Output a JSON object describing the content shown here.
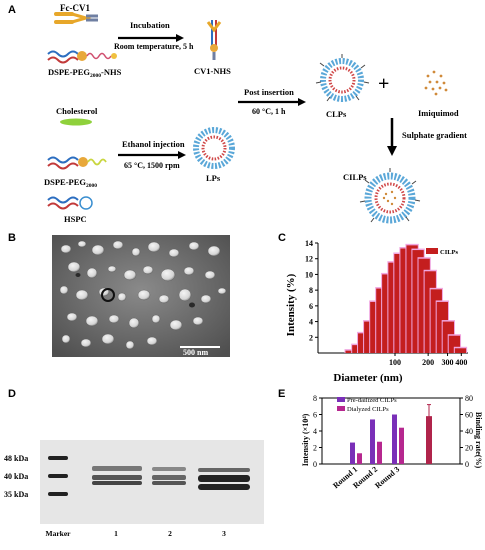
{
  "panels": {
    "a": "A",
    "b": "B",
    "c": "C",
    "d": "D",
    "e": "E"
  },
  "scheme": {
    "fc_cv1": "Fc-CV1",
    "dspe_nhs_pre": "DSPE-PEG",
    "dspe_nhs_sub": "2000",
    "dspe_nhs_post": "-NHS",
    "incubation": "Incubation",
    "incubation_cond": "Room temperature, 5 h",
    "cv1_nhs": "CV1-NHS",
    "post_insertion": "Post insertion",
    "post_insertion_cond": "60 °C, 1 h",
    "clps": "CLPs",
    "plus": "+",
    "imiquimod": "Imiquimod",
    "sulphate": "Sulphate gradient",
    "cilps": "CILPs",
    "cholesterol": "Cholesterol",
    "dspe_peg_pre": "DSPE-PEG",
    "dspe_peg_sub": "2000",
    "hspc": "HSPC",
    "ethanol": "Ethanol injection",
    "ethanol_cond": "65 °C, 1500 rpm",
    "lps": "LPs"
  },
  "tem": {
    "scale_label": "500 nm"
  },
  "chart_data": [
    {
      "type": "bar",
      "panel": "C",
      "xlabel": "Diameter (nm)",
      "ylabel": "Intensity (%)",
      "legend": [
        "CILPs"
      ],
      "legend_position": "top-right",
      "x_scale": "log",
      "ylim": [
        0,
        14
      ],
      "y_ticks": [
        2,
        4,
        6,
        8,
        10,
        12,
        14
      ],
      "x_tick_labels": [
        "100",
        "200",
        "300",
        "400"
      ],
      "x_tick_values": [
        100,
        200,
        300,
        400
      ],
      "bin_centers": [
        40,
        46,
        52,
        59,
        67,
        76,
        86,
        98,
        111,
        126,
        143,
        162,
        184,
        209,
        237,
        269,
        305,
        346,
        393
      ],
      "values": [
        0.3,
        1,
        2.5,
        4,
        6.5,
        8.2,
        10,
        11.5,
        12.6,
        13.3,
        13.7,
        13.1,
        12,
        10.4,
        8.1,
        6.5,
        4,
        2.2,
        0.6
      ],
      "color": "#c41e1e",
      "error_color": "#f0a6e0"
    },
    {
      "type": "bar",
      "panel": "E",
      "ylabel": "Intensity (×10⁴)",
      "y2label": "Binding rate(%)",
      "categories": [
        "Round 1",
        "Round 2",
        "Round 3"
      ],
      "ylim": [
        0,
        8
      ],
      "y_ticks": [
        0,
        2,
        4,
        6,
        8
      ],
      "y2lim": [
        0,
        80
      ],
      "y2_ticks": [
        0,
        20,
        40,
        60,
        80
      ],
      "legend_position": "top-left",
      "series": [
        {
          "name": "Pre-dailized CILPs",
          "values": [
            2.6,
            5.4,
            6.0
          ],
          "color": "#7a2fb8"
        },
        {
          "name": "Dialyzed CILPs",
          "values": [
            1.3,
            2.7,
            4.4
          ],
          "color": "#b6278f"
        }
      ],
      "binding_rate": {
        "value": 58,
        "error": 14,
        "color": "#b0244b"
      }
    }
  ],
  "gel": {
    "markers": [
      "48 kDa",
      "40 kDa",
      "35 kDa"
    ],
    "lanes": [
      "Marker",
      "1",
      "2",
      "3"
    ]
  }
}
